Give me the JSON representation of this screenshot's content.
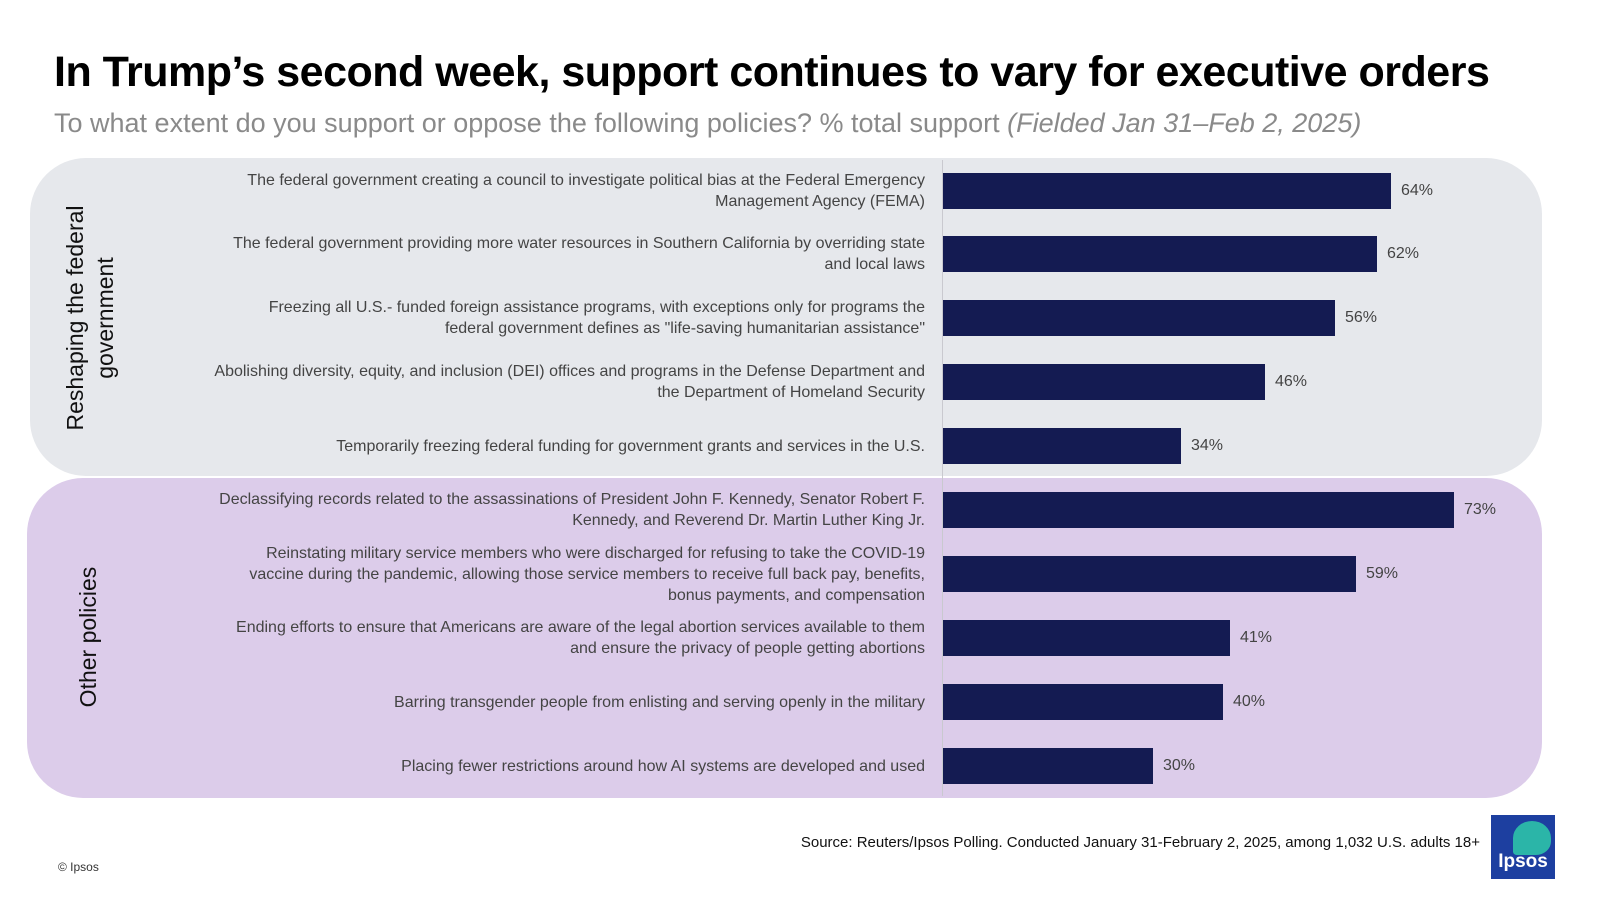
{
  "title": "In Trump’s second week, support continues to vary for executive orders",
  "subtitle": {
    "question": "To what extent do you support or oppose the following policies? % total support ",
    "fielded": "(Fielded Jan 31–Feb 2, 2025)"
  },
  "source": "Source: Reuters/Ipsos Polling. Conducted January 31-February 2, 2025, among 1,032 U.S. adults 18+",
  "copyright": "© Ipsos",
  "logo_text": "Ipsos",
  "colors": {
    "bar": "#141b52",
    "group1_bg": "#e6e8ec",
    "group2_bg": "#dcccea",
    "logo_blue": "#1d3fa0",
    "logo_teal": "#2bb5a8"
  },
  "chart_data": {
    "type": "bar",
    "orientation": "horizontal",
    "value_suffix": "%",
    "xlim": [
      0,
      100
    ],
    "groups": [
      {
        "label_lines": [
          "Reshaping the federal",
          "government"
        ],
        "items": [
          {
            "label_lines": [
              "The federal government creating a council to investigate political bias at the Federal Emergency",
              "Management Agency (FEMA)"
            ],
            "value": 64
          },
          {
            "label_lines": [
              "The federal government providing more water resources in Southern California by overriding state",
              "and local laws"
            ],
            "value": 62
          },
          {
            "label_lines": [
              "Freezing all U.S.- funded foreign assistance programs, with exceptions only for programs the",
              "federal government defines as \"life-saving humanitarian assistance\""
            ],
            "value": 56
          },
          {
            "label_lines": [
              "Abolishing diversity, equity, and inclusion (DEI) offices and programs in the Defense Department and",
              "the Department of Homeland Security"
            ],
            "value": 46
          },
          {
            "label_lines": [
              "Temporarily freezing federal funding for government grants and services in the U.S."
            ],
            "value": 34
          }
        ]
      },
      {
        "label_lines": [
          "Other policies"
        ],
        "items": [
          {
            "label_lines": [
              "Declassifying records related to the assassinations of President John F. Kennedy, Senator Robert F.",
              "Kennedy, and Reverend Dr. Martin Luther King Jr."
            ],
            "value": 73
          },
          {
            "label_lines": [
              "Reinstating military service members who were discharged for refusing to take the COVID-19",
              "vaccine during the pandemic, allowing those service members to receive full back pay, benefits,",
              "bonus payments, and compensation"
            ],
            "value": 59
          },
          {
            "label_lines": [
              "Ending efforts to ensure that Americans are aware of the legal abortion services available to them",
              "and ensure the privacy of people getting abortions"
            ],
            "value": 41
          },
          {
            "label_lines": [
              "Barring transgender people from enlisting and serving openly in the military"
            ],
            "value": 40
          },
          {
            "label_lines": [
              "Placing fewer restrictions around how AI systems are developed and used"
            ],
            "value": 30
          }
        ]
      }
    ]
  }
}
